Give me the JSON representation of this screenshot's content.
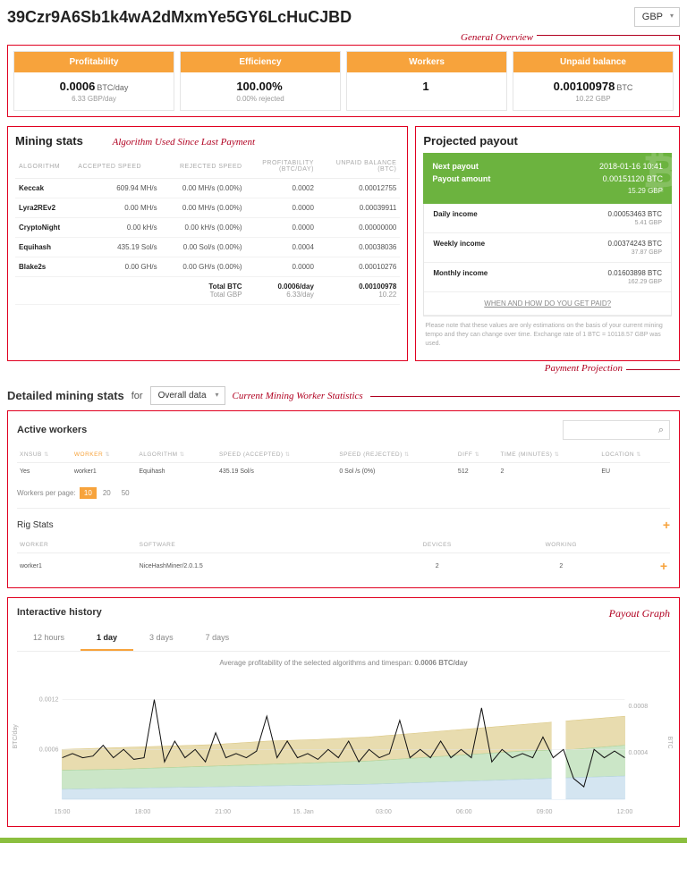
{
  "header": {
    "address": "39Czr9A6Sb1k4wA2dMxmYe5GY6LcHuCJBD",
    "currency": "GBP",
    "annot_overview": "General Overview"
  },
  "overview": {
    "cards": [
      {
        "title": "Profitability",
        "value": "0.0006",
        "unit": "BTC/day",
        "sub": "6.33 GBP/day"
      },
      {
        "title": "Efficiency",
        "value": "100.00%",
        "unit": "",
        "sub": "0.00% rejected"
      },
      {
        "title": "Workers",
        "value": "1",
        "unit": "",
        "sub": ""
      },
      {
        "title": "Unpaid balance",
        "value": "0.00100978",
        "unit": "BTC",
        "sub": "10.22 GBP"
      }
    ]
  },
  "mining_stats": {
    "title": "Mining stats",
    "annot": "Algorithm Used Since Last Payment",
    "columns": [
      "ALGORITHM",
      "ACCEPTED SPEED",
      "REJECTED SPEED",
      "PROFITABILITY\n(BTC/DAY)",
      "UNPAID BALANCE\n(BTC)"
    ],
    "rows": [
      [
        "Keccak",
        "609.94 MH/s",
        "0.00 MH/s (0.00%)",
        "0.0002",
        "0.00012755"
      ],
      [
        "Lyra2REv2",
        "0.00 MH/s",
        "0.00 MH/s (0.00%)",
        "0.0000",
        "0.00039911"
      ],
      [
        "CryptoNight",
        "0.00 kH/s",
        "0.00 kH/s (0.00%)",
        "0.0000",
        "0.00000000"
      ],
      [
        "Equihash",
        "435.19 Sol/s",
        "0.00 Sol/s (0.00%)",
        "0.0004",
        "0.00038036"
      ],
      [
        "Blake2s",
        "0.00 GH/s",
        "0.00 GH/s (0.00%)",
        "0.0000",
        "0.00010276"
      ]
    ],
    "total_btc_label": "Total BTC",
    "total_gbp_label": "Total GBP",
    "total_btc_prof": "0.0006/day",
    "total_gbp_prof": "6.33/day",
    "total_btc_bal": "0.00100978",
    "total_gbp_bal": "10.22"
  },
  "annot_payment": "Payment Projection",
  "payout": {
    "title": "Projected payout",
    "next_payout_label": "Next payout",
    "next_payout": "2018-01-16 10:41",
    "payout_amount_label": "Payout amount",
    "payout_amount": "0.00151120 BTC",
    "payout_amount_sub": "15.29 GBP",
    "rows": [
      {
        "k": "Daily income",
        "v": "0.00053463 BTC",
        "s": "5.41 GBP"
      },
      {
        "k": "Weekly income",
        "v": "0.00374243 BTC",
        "s": "37.87 GBP"
      },
      {
        "k": "Monthly income",
        "v": "0.01603898 BTC",
        "s": "162.29 GBP"
      }
    ],
    "link": "WHEN AND HOW DO YOU GET PAID?",
    "note": "Please note that these values are only estimations on the basis of your current mining tempo and they can change over time. Exchange rate of 1 BTC = 10118.57 GBP was used."
  },
  "detailed": {
    "title": "Detailed mining stats",
    "for": "for",
    "dropdown": "Overall data",
    "annot": "Current Mining Worker Statistics",
    "active_workers_title": "Active workers",
    "search_icon": "⌕",
    "wk_cols": [
      "XNSUB",
      "WORKER",
      "ALGORITHM",
      "SPEED (ACCEPTED)",
      "SPEED (REJECTED)",
      "DIFF",
      "TIME (MINUTES)",
      "LOCATION"
    ],
    "wk_row": [
      "Yes",
      "worker1",
      "Equihash",
      "435.19 Sol/s",
      "0 Sol /s (0%)",
      "512",
      "2",
      "EU"
    ],
    "pager_label": "Workers per page:",
    "pager": [
      "10",
      "20",
      "50"
    ],
    "rig_title": "Rig Stats",
    "rig_cols": [
      "WORKER",
      "SOFTWARE",
      "DEVICES",
      "WORKING"
    ],
    "rig_row": [
      "worker1",
      "NiceHashMiner/2.0.1.5",
      "2",
      "2"
    ]
  },
  "history": {
    "title": "Interactive history",
    "annot": "Payout Graph",
    "tabs": [
      "12 hours",
      "1 day",
      "3 days",
      "7 days"
    ],
    "active_tab": 1,
    "caption_prefix": "Average profitability of the selected algorithms and timespan: ",
    "caption_value": "0.0006 BTC/day",
    "y_left_label": "BTC/day",
    "y_right_label": "BTC",
    "y_ticks_left": [
      "0.0012",
      "0.0006"
    ],
    "y_ticks_right": [
      "0.0008",
      "0.0004"
    ],
    "x_ticks": [
      "15:00",
      "18:00",
      "21:00",
      "15. Jan",
      "03:00",
      "06:00",
      "09:00",
      "12:00"
    ],
    "colors": {
      "area_top": "#d9c47a",
      "area_mid": "#a9d6a1",
      "area_bot": "#b7d4e8",
      "line": "#111",
      "grid": "#e5e5e5",
      "bg": "#ffffff"
    },
    "ylim": [
      0,
      0.0014
    ],
    "line_y": [
      0.0005,
      0.00055,
      0.0005,
      0.00052,
      0.00065,
      0.0005,
      0.0006,
      0.00048,
      0.0005,
      0.0012,
      0.00045,
      0.0007,
      0.0005,
      0.0006,
      0.00045,
      0.0008,
      0.0005,
      0.00055,
      0.0005,
      0.00058,
      0.001,
      0.0005,
      0.0007,
      0.0005,
      0.00055,
      0.00048,
      0.0006,
      0.0005,
      0.0007,
      0.00045,
      0.0006,
      0.0005,
      0.00055,
      0.00095,
      0.0005,
      0.0006,
      0.0005,
      0.0007,
      0.0005,
      0.0006,
      0.0005,
      0.0011,
      0.00045,
      0.0006,
      0.0005,
      0.00055,
      0.0005,
      0.00075,
      0.0005,
      0.0006,
      0.00025,
      0.00015,
      0.0006,
      0.0005,
      0.00058,
      0.0005
    ]
  }
}
